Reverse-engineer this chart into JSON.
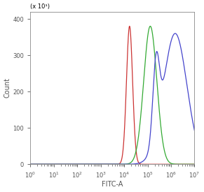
{
  "xlabel": "FITC-A",
  "ylabel": "Count",
  "ylabel2": "(x 10¹)",
  "xlim_linear_start": 0,
  "xlim_log_start": 1,
  "xlim_end": 10000000.0,
  "ylim": [
    0,
    420
  ],
  "yticks": [
    0,
    100,
    200,
    300,
    400
  ],
  "background_color": "#ffffff",
  "red": {
    "color": "#cc3333",
    "peak_x": 17000,
    "peak_y": 380,
    "sigma": 0.13
  },
  "green": {
    "color": "#33aa33",
    "peak_x": 130000,
    "peak_y": 380,
    "sigma": 0.28
  },
  "blue": {
    "color": "#4444cc",
    "peak_main_x": 1500000,
    "peak_main_y": 360,
    "sigma_main": 0.5,
    "peak_shoulder_x": 230000,
    "peak_shoulder_y": 210,
    "sigma_shoulder": 0.14
  }
}
